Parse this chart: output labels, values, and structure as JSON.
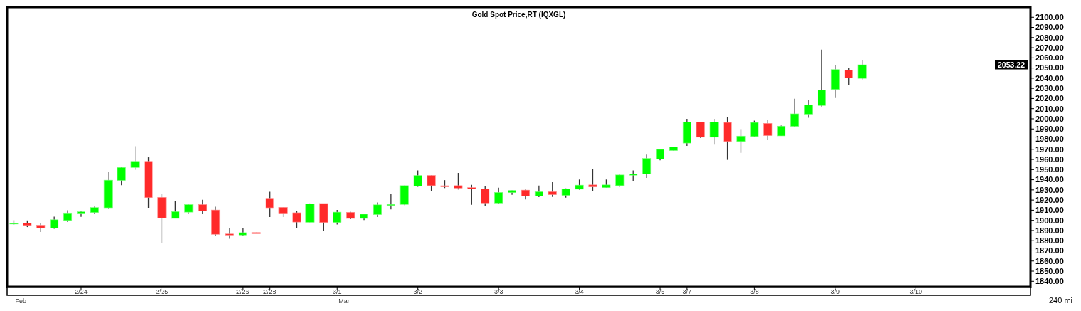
{
  "chart_data": {
    "type": "candlestick",
    "title": "Gold  Spot  Price,RT  (IQXGL)",
    "categories": [
      null,
      null,
      null,
      null,
      null,
      "2/24",
      null,
      null,
      null,
      null,
      null,
      "2/25",
      null,
      null,
      null,
      null,
      null,
      "2/26",
      null,
      "2/28",
      null,
      null,
      null,
      null,
      "3/1",
      null,
      null,
      null,
      null,
      null,
      "3/2",
      null,
      null,
      null,
      null,
      null,
      "3/3",
      null,
      null,
      null,
      null,
      null,
      "3/4",
      null,
      null,
      null,
      null,
      null,
      "3/5",
      null,
      "3/7",
      null,
      null,
      null,
      null,
      "3/8",
      null,
      null,
      null,
      null,
      null,
      "3/9",
      null,
      null,
      null,
      null,
      null,
      "3/10",
      null,
      null,
      null,
      null,
      null,
      null,
      null,
      null
    ],
    "ohlc": [
      [
        1897.2,
        1900.1,
        1895.7,
        1897.4
      ],
      [
        1897.2,
        1899.9,
        1893.4,
        1895.0
      ],
      [
        1895.2,
        1897.2,
        1888.5,
        1892.6
      ],
      [
        1892.3,
        1903.7,
        1891.7,
        1900.6
      ],
      [
        1899.9,
        1909.9,
        1898.4,
        1907.3
      ],
      [
        1907.0,
        1909.5,
        1903.5,
        1908.4
      ],
      [
        1907.7,
        1913.5,
        1907.0,
        1912.6
      ],
      [
        1912.4,
        1948.0,
        1911.0,
        1939.6
      ],
      [
        1939.3,
        1952.9,
        1934.7,
        1952.1
      ],
      [
        1952.1,
        1973.0,
        1949.8,
        1958.1
      ],
      [
        1958.1,
        1962.1,
        1912.4,
        1922.4
      ],
      [
        1922.6,
        1926.2,
        1877.9,
        1902.4
      ],
      [
        1901.9,
        1919.3,
        1901.9,
        1908.6
      ],
      [
        1908.1,
        1916.2,
        1906.8,
        1915.5
      ],
      [
        1915.5,
        1920.2,
        1906.8,
        1909.3
      ],
      [
        1910.2,
        1913.5,
        1885.0,
        1886.3
      ],
      [
        1886.6,
        1892.8,
        1881.9,
        1886.4
      ],
      [
        1885.6,
        1892.3,
        1885.0,
        1887.9
      ],
      [
        1888.0,
        1888.0,
        1887.8,
        1887.8
      ],
      [
        1921.7,
        1928.2,
        1903.3,
        1912.4
      ],
      [
        1912.8,
        1912.8,
        1903.3,
        1907.0
      ],
      [
        1907.5,
        1909.3,
        1892.3,
        1898.3
      ],
      [
        1898.1,
        1916.9,
        1897.7,
        1916.2
      ],
      [
        1916.6,
        1916.6,
        1889.9,
        1897.9
      ],
      [
        1897.9,
        1910.2,
        1895.9,
        1908.1
      ],
      [
        1907.9,
        1908.4,
        1901.2,
        1901.9
      ],
      [
        1901.9,
        1906.8,
        1900.3,
        1906.1
      ],
      [
        1905.7,
        1917.7,
        1903.3,
        1915.3
      ],
      [
        1915.3,
        1925.7,
        1910.8,
        1915.7
      ],
      [
        1915.7,
        1934.2,
        1915.1,
        1934.2
      ],
      [
        1933.6,
        1949.2,
        1933.1,
        1944.2
      ],
      [
        1944.2,
        1944.2,
        1929.1,
        1934.2
      ],
      [
        1934.1,
        1939.6,
        1931.8,
        1933.9
      ],
      [
        1934.2,
        1946.7,
        1930.4,
        1931.8
      ],
      [
        1932.2,
        1934.9,
        1915.3,
        1930.9
      ],
      [
        1931.1,
        1934.0,
        1913.9,
        1917.1
      ],
      [
        1917.1,
        1932.2,
        1916.0,
        1927.5
      ],
      [
        1927.3,
        1929.5,
        1925.1,
        1929.5
      ],
      [
        1929.8,
        1930.2,
        1920.6,
        1923.8
      ],
      [
        1923.8,
        1934.2,
        1922.9,
        1928.2
      ],
      [
        1928.2,
        1937.6,
        1923.1,
        1925.3
      ],
      [
        1924.6,
        1931.5,
        1922.4,
        1931.1
      ],
      [
        1930.7,
        1940.2,
        1930.2,
        1934.7
      ],
      [
        1934.9,
        1950.3,
        1928.9,
        1932.9
      ],
      [
        1932.2,
        1940.2,
        1932.2,
        1934.9
      ],
      [
        1934.2,
        1945.1,
        1932.9,
        1944.7
      ],
      [
        1944.5,
        1949.2,
        1938.5,
        1945.8
      ],
      [
        1945.8,
        1964.8,
        1941.8,
        1961.0
      ],
      [
        1960.5,
        1969.9,
        1959.2,
        1969.9
      ],
      [
        1968.8,
        1972.3,
        1968.8,
        1972.3
      ],
      [
        1976.1,
        1999.9,
        1973.4,
        1996.8
      ],
      [
        1996.8,
        1996.8,
        1981.2,
        1981.9
      ],
      [
        1981.9,
        1999.9,
        1974.6,
        1996.8
      ],
      [
        1996.4,
        2001.5,
        1959.6,
        1977.7
      ],
      [
        1977.7,
        1989.9,
        1966.5,
        1983.0
      ],
      [
        1982.6,
        1998.2,
        1982.1,
        1996.4
      ],
      [
        1995.5,
        1998.8,
        1979.0,
        1983.5
      ],
      [
        1983.2,
        1993.3,
        1983.2,
        1992.8
      ],
      [
        1992.6,
        2019.8,
        1991.9,
        2004.9
      ],
      [
        2004.6,
        2018.7,
        2001.1,
        2013.8
      ],
      [
        2013.1,
        2068.1,
        2012.2,
        2028.2
      ],
      [
        2028.9,
        2052.5,
        2020.4,
        2048.5
      ],
      [
        2048.1,
        2050.5,
        2033.1,
        2040.3
      ],
      [
        2039.8,
        2057.9,
        2038.9,
        2053.22
      ],
      null,
      null,
      null,
      null,
      null,
      null,
      null,
      null,
      null,
      null,
      null,
      null
    ],
    "ylim": [
      1834.6,
      2110
    ],
    "yticks": [
      {
        "value": 1840,
        "label": "1840.00"
      },
      {
        "value": 1850,
        "label": "1850.00"
      },
      {
        "value": 1860,
        "label": "1860.00"
      },
      {
        "value": 1870,
        "label": "1870.00"
      },
      {
        "value": 1880,
        "label": "1880.00"
      },
      {
        "value": 1890,
        "label": "1890.00"
      },
      {
        "value": 1900,
        "label": "1900.00"
      },
      {
        "value": 1910,
        "label": "1910.00"
      },
      {
        "value": 1920,
        "label": "1920.00"
      },
      {
        "value": 1930,
        "label": "1930.00"
      },
      {
        "value": 1940,
        "label": "1940.00"
      },
      {
        "value": 1950,
        "label": "1950.00"
      },
      {
        "value": 1960,
        "label": "1960.00"
      },
      {
        "value": 1970,
        "label": "1970.00"
      },
      {
        "value": 1980,
        "label": "1980.00"
      },
      {
        "value": 1990,
        "label": "1990.00"
      },
      {
        "value": 2000,
        "label": "2000.00"
      },
      {
        "value": 2010,
        "label": "2010.00"
      },
      {
        "value": 2020,
        "label": "2020.00"
      },
      {
        "value": 2030,
        "label": "2030.00"
      },
      {
        "value": 2040,
        "label": "2040.00"
      },
      {
        "value": 2050,
        "label": "2050.00"
      },
      {
        "value": 2060,
        "label": "2060.00"
      },
      {
        "value": 2070,
        "label": "2070.00"
      },
      {
        "value": 2080,
        "label": "2080.00"
      },
      {
        "value": 2090,
        "label": "2090.00"
      },
      {
        "value": 2100,
        "label": "2100.00"
      }
    ],
    "annotations": [
      "Feb",
      "Mar",
      "2053.22",
      "240 mi"
    ],
    "grid": false
  }
}
